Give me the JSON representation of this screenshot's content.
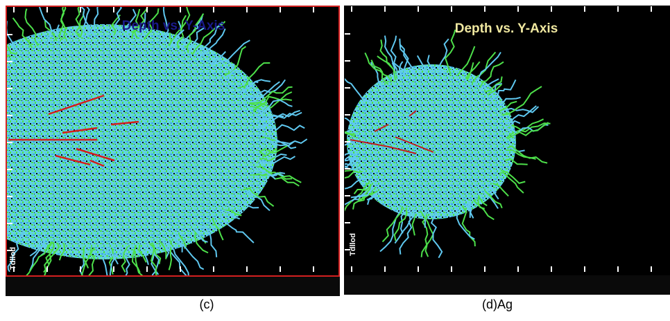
{
  "panels": [
    {
      "title": "Depth vs. Y-Axis",
      "axis_label": "Tdllod",
      "caption": "(c)"
    },
    {
      "title": "Depth vs. Y-Axis",
      "axis_label": "Tdllod",
      "caption": "(d)Ag"
    }
  ]
}
